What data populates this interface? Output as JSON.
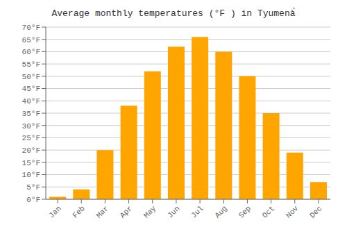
{
  "chart_data": {
    "type": "bar",
    "title": "Average monthly temperatures (°F ) in Tyumenà̀",
    "categories": [
      "Jan",
      "Feb",
      "Mar",
      "Apr",
      "May",
      "Jun",
      "Jul",
      "Aug",
      "Sep",
      "Oct",
      "Nov",
      "Dec"
    ],
    "values": [
      1,
      4,
      20,
      38,
      52,
      62,
      66,
      60,
      50,
      35,
      19,
      7
    ],
    "color": "#FFA500",
    "ylim": [
      0,
      70
    ],
    "yticks": [
      {
        "value": 0,
        "label": "0°F"
      },
      {
        "value": 5,
        "label": "5°F"
      },
      {
        "value": 10,
        "label": "10°F"
      },
      {
        "value": 15,
        "label": "15°F"
      },
      {
        "value": 20,
        "label": "20°F"
      },
      {
        "value": 25,
        "label": "25°F"
      },
      {
        "value": 30,
        "label": "30°F"
      },
      {
        "value": 35,
        "label": "35°F"
      },
      {
        "value": 40,
        "label": "40°F"
      },
      {
        "value": 45,
        "label": "45°F"
      },
      {
        "value": 50,
        "label": "50°F"
      },
      {
        "value": 55,
        "label": "55°F"
      },
      {
        "value": 60,
        "label": "60°F"
      },
      {
        "value": 65,
        "label": "65°F"
      },
      {
        "value": 70,
        "label": "70°F"
      }
    ],
    "grid": true
  }
}
